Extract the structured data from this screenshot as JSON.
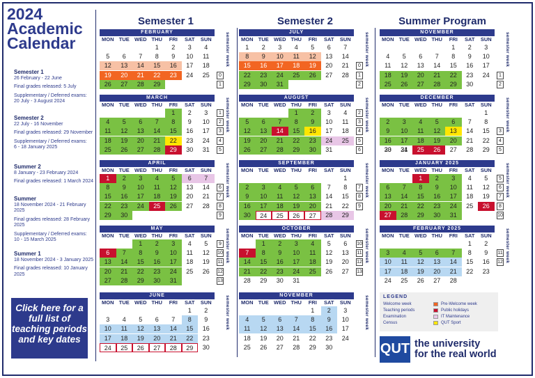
{
  "title": {
    "line1": "2024",
    "line2": "Academic",
    "line3": "Calendar"
  },
  "sidebar": {
    "items": [
      {
        "heading": "Semester 1",
        "lines": [
          "26 February - 22 June",
          "Final grades released: 5 July",
          "Supplementary / Deferred exams:",
          "20 July - 3 August 2024"
        ]
      },
      {
        "heading": "Semester 2",
        "lines": [
          "22 July - 16 November",
          "Final grades released: 29 November",
          "Supplementary / Deferred exams:",
          "6 - 18 January 2025"
        ]
      },
      {
        "heading": "Summer 2",
        "lines": [
          "8 January - 23 February 2024",
          "Final grades released: 1 March 2024"
        ]
      },
      {
        "heading": "Summer",
        "lines": [
          "18 November 2024 - 21 February 2025",
          "Final grades released: 28 February 2025",
          "Supplementary / Deferred exams:",
          "10 - 15 March 2025"
        ]
      },
      {
        "heading": "Summer 1",
        "lines": [
          "18 November 2024 - 3 January 2025",
          "Final grades released: 10 January 2025"
        ]
      }
    ],
    "cta": "Click here for a full list of teaching periods and key dates"
  },
  "columns": {
    "sem1": "Semester 1",
    "sem2": "Semester 2",
    "summer": "Summer Program"
  },
  "dow": [
    "MON",
    "TUE",
    "WED",
    "THU",
    "FRI",
    "SAT",
    "SUN"
  ],
  "semester_week_label": "semester week",
  "legend": {
    "title": "LEGEND",
    "items": [
      {
        "label": "Welcome week",
        "color": "#f7c1a5"
      },
      {
        "label": "Pre-Welcome week",
        "color": "#f26522"
      },
      {
        "label": "Teaching periods",
        "color": "#7ac143"
      },
      {
        "label": "Public holidays",
        "color": "#c8102e"
      },
      {
        "label": "Examination",
        "color": "#b8d8f2"
      },
      {
        "label": "IT Maintenance",
        "color": "#e8c6e6"
      },
      {
        "label": "Census",
        "color": "#ffffff"
      },
      {
        "label": "QUT Sport",
        "color": "#ffe600"
      }
    ]
  },
  "brand": {
    "logo": "QUT",
    "tagline1": "the university",
    "tagline2": "for the real world"
  },
  "months": [
    {
      "name": "FEBRUARY",
      "col": 0,
      "row": 0,
      "start": 3,
      "days": 29,
      "styles": {
        "12": "welcome",
        "13": "welcome",
        "14": "welcome",
        "15": "welcome",
        "16": "welcome",
        "19": "prew",
        "20": "prew",
        "21": "prew",
        "22": "prew",
        "23": "prew",
        "26": "teach",
        "27": "teach",
        "28": "teach",
        "29": "teach"
      },
      "weeks": [
        {
          "row": 3,
          "n": "0"
        },
        {
          "row": 4,
          "n": "1"
        }
      ]
    },
    {
      "name": "MARCH",
      "col": 0,
      "row": 1,
      "start": 4,
      "days": 31,
      "styles": {
        "1": "teach",
        "4": "teach",
        "5": "teach",
        "6": "teach",
        "7": "teach",
        "8": "teach",
        "11": "teach",
        "12": "teach",
        "13": "teach",
        "14": "teach",
        "15": "teach",
        "18": "teach",
        "19": "teach",
        "20": "teach",
        "21": "teach",
        "22": "sport",
        "25": "teach",
        "26": "teach",
        "27": "teach",
        "28": "teach",
        "29": "hol"
      },
      "weeks": [
        {
          "row": 0,
          "n": "1"
        },
        {
          "row": 1,
          "n": "2"
        },
        {
          "row": 2,
          "n": "3"
        },
        {
          "row": 3,
          "n": "4"
        },
        {
          "row": 4,
          "n": "5"
        }
      ]
    },
    {
      "name": "APRIL",
      "col": 0,
      "row": 2,
      "start": 0,
      "days": 30,
      "styles": {
        "1": "hol",
        "2": "teach",
        "3": "teach",
        "4": "teach",
        "5": "teach",
        "6": "maint",
        "7": "maint",
        "8": "teach",
        "9": "teach",
        "10": "teach",
        "11": "teach",
        "12": "teach",
        "15": "teach",
        "16": "teach",
        "17": "teach",
        "18": "teach",
        "19": "teach",
        "22": "teach",
        "23": "teach",
        "24": "teach",
        "25": "hol",
        "26": "teach",
        "29": "teach",
        "30": "teach"
      },
      "weeks": [
        {
          "row": 1,
          "n": "6"
        },
        {
          "row": 2,
          "n": "7"
        },
        {
          "row": 3,
          "n": "8"
        },
        {
          "row": 4,
          "n": "9"
        }
      ]
    },
    {
      "name": "MAY",
      "col": 0,
      "row": 3,
      "start": 2,
      "days": 31,
      "styles": {
        "1": "teach",
        "2": "teach",
        "3": "teach",
        "6": "hol",
        "7": "teach",
        "8": "teach",
        "9": "teach",
        "10": "teach",
        "13": "teach",
        "14": "teach",
        "15": "teach",
        "16": "teach",
        "17": "teach",
        "20": "teach",
        "21": "teach",
        "22": "teach",
        "23": "teach",
        "24": "teach",
        "27": "teach",
        "28": "teach",
        "29": "teach",
        "30": "teach",
        "31": "teach"
      },
      "weeks": [
        {
          "row": 0,
          "n": "9"
        },
        {
          "row": 1,
          "n": "10"
        },
        {
          "row": 2,
          "n": "11"
        },
        {
          "row": 3,
          "n": "12"
        },
        {
          "row": 4,
          "n": "13"
        }
      ]
    },
    {
      "name": "JUNE",
      "col": 0,
      "row": 4,
      "start": 5,
      "days": 30,
      "styles": {
        "8": "exam",
        "10": "exam",
        "11": "exam",
        "12": "exam",
        "13": "exam",
        "14": "exam",
        "15": "exam",
        "17": "exam",
        "18": "exam",
        "19": "exam",
        "20": "exam",
        "21": "exam",
        "22": "exam",
        "24": "census",
        "25": "census",
        "26": "census",
        "27": "census",
        "28": "census",
        "29": "census"
      },
      "weeks": []
    },
    {
      "name": "JULY",
      "col": 1,
      "row": 0,
      "start": 0,
      "days": 31,
      "styles": {
        "8": "welcome",
        "9": "welcome",
        "10": "welcome",
        "11": "welcome",
        "12": "welcome",
        "15": "prew",
        "16": "prew",
        "17": "prew",
        "18": "prew",
        "19": "prew",
        "22": "teach",
        "23": "teach",
        "24": "teach",
        "25": "teach",
        "26": "teach",
        "29": "teach",
        "30": "teach",
        "31": "teach"
      },
      "weeks": [
        {
          "row": 2,
          "n": "0"
        },
        {
          "row": 3,
          "n": "1"
        },
        {
          "row": 4,
          "n": "2"
        }
      ]
    },
    {
      "name": "AUGUST",
      "col": 1,
      "row": 1,
      "start": 3,
      "days": 31,
      "styles": {
        "1": "teach",
        "2": "teach",
        "5": "teach",
        "6": "teach",
        "7": "teach",
        "8": "teach",
        "9": "teach",
        "12": "teach",
        "13": "teach",
        "14": "hol",
        "15": "teach",
        "16": "sport",
        "19": "teach",
        "20": "teach",
        "21": "teach",
        "22": "teach",
        "23": "teach",
        "24": "maint",
        "25": "maint",
        "26": "teach",
        "27": "teach",
        "28": "teach",
        "29": "teach",
        "30": "teach"
      },
      "weeks": [
        {
          "row": 0,
          "n": "2"
        },
        {
          "row": 1,
          "n": "3"
        },
        {
          "row": 2,
          "n": "4"
        },
        {
          "row": 3,
          "n": "5"
        },
        {
          "row": 4,
          "n": "6"
        }
      ]
    },
    {
      "name": "SEPTEMBER",
      "col": 1,
      "row": 2,
      "start": 6,
      "days": 30,
      "styles": {
        "2": "teach",
        "3": "teach",
        "4": "teach",
        "5": "teach",
        "6": "teach",
        "9": "teach",
        "10": "teach",
        "11": "teach",
        "12": "teach",
        "13": "teach",
        "16": "teach",
        "17": "teach",
        "18": "teach",
        "19": "teach",
        "20": "teach",
        "28": "maint",
        "29": "maint",
        "23": "census",
        "24": "census",
        "25": "census",
        "26": "census",
        "27": "census",
        "30": "teach"
      },
      "weeks": [
        {
          "row": 1,
          "n": "7"
        },
        {
          "row": 2,
          "n": "8"
        },
        {
          "row": 3,
          "n": "9"
        }
      ]
    },
    {
      "name": "OCTOBER",
      "col": 1,
      "row": 3,
      "start": 1,
      "days": 31,
      "styles": {
        "1": "teach",
        "2": "teach",
        "3": "teach",
        "4": "teach",
        "7": "hol",
        "8": "teach",
        "9": "teach",
        "10": "teach",
        "11": "teach",
        "14": "teach",
        "15": "teach",
        "16": "teach",
        "17": "teach",
        "18": "teach",
        "21": "teach",
        "22": "teach",
        "23": "teach",
        "24": "teach",
        "25": "teach"
      },
      "weeks": [
        {
          "row": 0,
          "n": "10"
        },
        {
          "row": 1,
          "n": "11"
        },
        {
          "row": 2,
          "n": "12"
        },
        {
          "row": 3,
          "n": "13"
        }
      ]
    },
    {
      "name": "NOVEMBER",
      "col": 1,
      "row": 4,
      "start": 4,
      "days": 30,
      "styles": {
        "2": "exam",
        "4": "exam",
        "5": "exam",
        "6": "exam",
        "7": "exam",
        "8": "exam",
        "9": "exam",
        "11": "exam",
        "12": "exam",
        "13": "exam",
        "14": "exam",
        "15": "exam",
        "16": "exam"
      },
      "weeks": []
    },
    {
      "name": "NOVEMBER",
      "col": 2,
      "row": 0,
      "start": 4,
      "days": 30,
      "styles": {
        "18": "teach",
        "19": "teach",
        "20": "teach",
        "21": "teach",
        "22": "teach",
        "25": "teach",
        "26": "teach",
        "27": "teach",
        "28": "teach",
        "29": "teach"
      },
      "weeks": [
        {
          "row": 3,
          "n": "1"
        },
        {
          "row": 4,
          "n": "2"
        }
      ]
    },
    {
      "name": "DECEMBER",
      "col": 2,
      "row": 1,
      "start": 6,
      "days": 31,
      "styles": {
        "2": "teach",
        "3": "teach",
        "4": "teach",
        "5": "teach",
        "6": "teach",
        "9": "teach",
        "10": "teach",
        "11": "teach",
        "12": "teach",
        "13": "sport",
        "16": "teach",
        "17": "teach",
        "18": "teach",
        "19": "teach",
        "20": "teach",
        "25": "hol",
        "26": "hol"
      },
      "weeks": [
        {
          "row": 2,
          "n": "3"
        },
        {
          "row": 3,
          "n": "4"
        },
        {
          "row": 4,
          "n": "5"
        }
      ]
    },
    {
      "name": "JANUARY 2025",
      "col": 2,
      "row": 2,
      "start": 2,
      "days": 31,
      "styles": {
        "1": "hol",
        "2": "teach",
        "3": "teach",
        "6": "teach",
        "7": "teach",
        "8": "teach",
        "9": "teach",
        "10": "teach",
        "13": "teach",
        "14": "teach",
        "15": "teach",
        "16": "teach",
        "17": "teach",
        "20": "teach",
        "21": "teach",
        "22": "teach",
        "23": "teach",
        "24": "teach",
        "26": "hol",
        "27": "hol",
        "28": "teach",
        "29": "teach",
        "30": "teach",
        "31": "teach"
      },
      "weeks": [
        {
          "row": 0,
          "n": "5"
        },
        {
          "row": 1,
          "n": "6"
        },
        {
          "row": 2,
          "n": "7"
        },
        {
          "row": 3,
          "n": "8"
        },
        {
          "row": 4,
          "n": "10"
        }
      ]
    },
    {
      "name": "FEBRUARY 2025",
      "col": 2,
      "row": 3,
      "start": 5,
      "days": 28,
      "styles": {
        "3": "teach",
        "4": "teach",
        "5": "teach",
        "6": "teach",
        "7": "teach",
        "10": "exam",
        "11": "exam",
        "12": "exam",
        "13": "exam",
        "14": "exam",
        "17": "exam",
        "18": "exam",
        "19": "exam",
        "20": "exam",
        "21": "exam"
      },
      "weeks": [
        {
          "row": 1,
          "n": "11"
        },
        {
          "row": 2,
          "n": "12"
        }
      ]
    }
  ]
}
